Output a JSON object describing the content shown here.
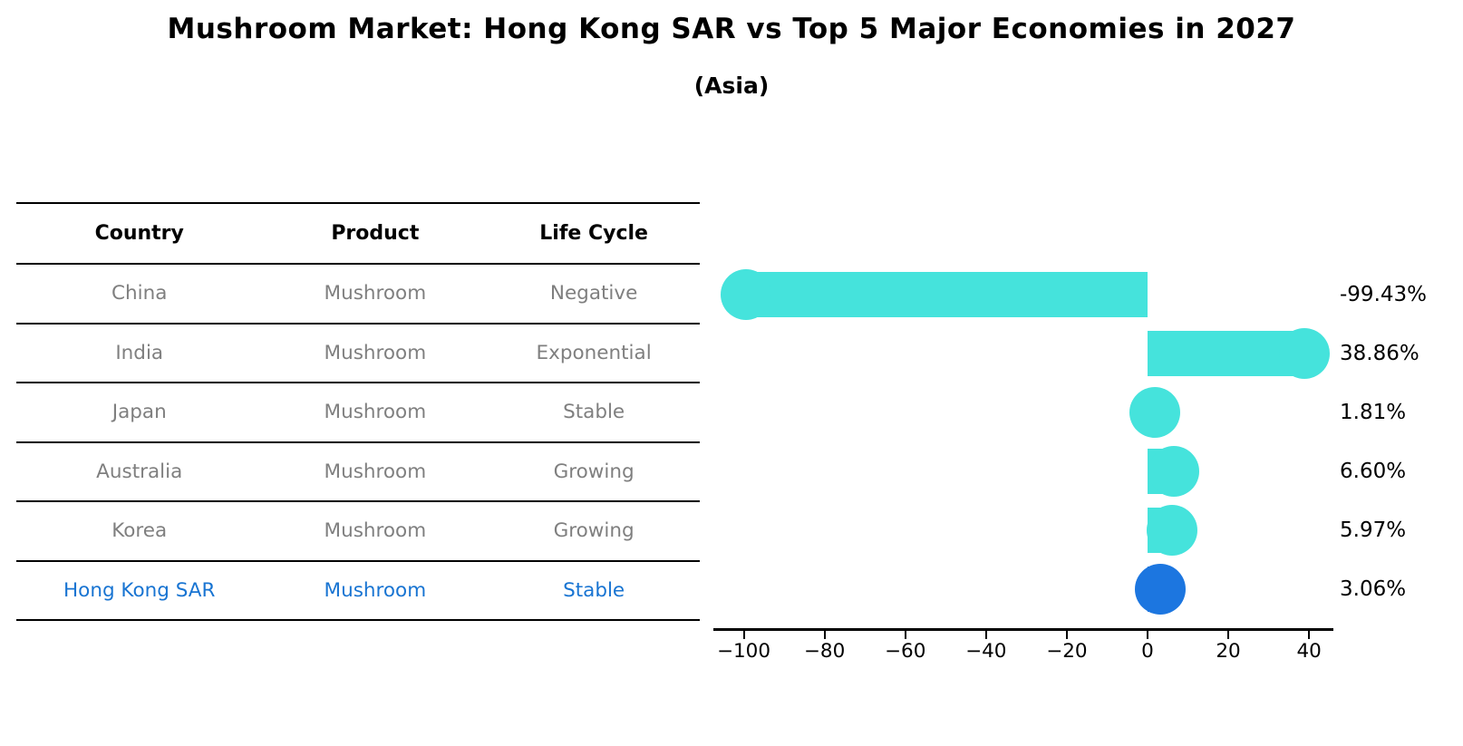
{
  "title": "Mushroom Market: Hong Kong SAR vs Top 5 Major Economies in 2027",
  "subtitle": "(Asia)",
  "table": {
    "headers": [
      "Country",
      "Product",
      "Life Cycle"
    ],
    "rows": [
      {
        "country": "China",
        "product": "Mushroom",
        "life_cycle": "Negative",
        "highlight": false
      },
      {
        "country": "India",
        "product": "Mushroom",
        "life_cycle": "Exponential",
        "highlight": false
      },
      {
        "country": "Japan",
        "product": "Mushroom",
        "life_cycle": "Stable",
        "highlight": false
      },
      {
        "country": "Australia",
        "product": "Mushroom",
        "life_cycle": "Growing",
        "highlight": false
      },
      {
        "country": "Korea",
        "product": "Mushroom",
        "life_cycle": "Growing",
        "highlight": false
      },
      {
        "country": "Hong Kong SAR",
        "product": "Mushroom",
        "life_cycle": "Stable",
        "highlight": true
      }
    ]
  },
  "chart_data": {
    "type": "bar",
    "orientation": "horizontal",
    "title": "Mushroom Market: Hong Kong SAR vs Top 5 Major Economies in 2027",
    "subtitle": "(Asia)",
    "categories": [
      "China",
      "India",
      "Japan",
      "Australia",
      "Korea",
      "Hong Kong SAR"
    ],
    "values": [
      -99.43,
      38.86,
      1.81,
      6.6,
      5.97,
      3.06
    ],
    "value_labels": [
      "-99.43%",
      "38.86%",
      "1.81%",
      "6.60%",
      "5.97%",
      "3.06%"
    ],
    "xlabel": "",
    "ylabel": "",
    "xlim": [
      -107.3,
      45.8
    ],
    "xticks": [
      -100,
      -80,
      -60,
      -40,
      -20,
      0,
      20,
      40
    ],
    "xtick_labels": [
      "−100",
      "−80",
      "−60",
      "−40",
      "−20",
      "0",
      "20",
      "40"
    ],
    "grid": false,
    "legend": false,
    "bar_color": "#45E3DC",
    "highlight_color": "#1C76E0",
    "highlight_index": 5,
    "row_text_color": "#7f7f7f",
    "highlight_text_color": "#1874d2"
  }
}
